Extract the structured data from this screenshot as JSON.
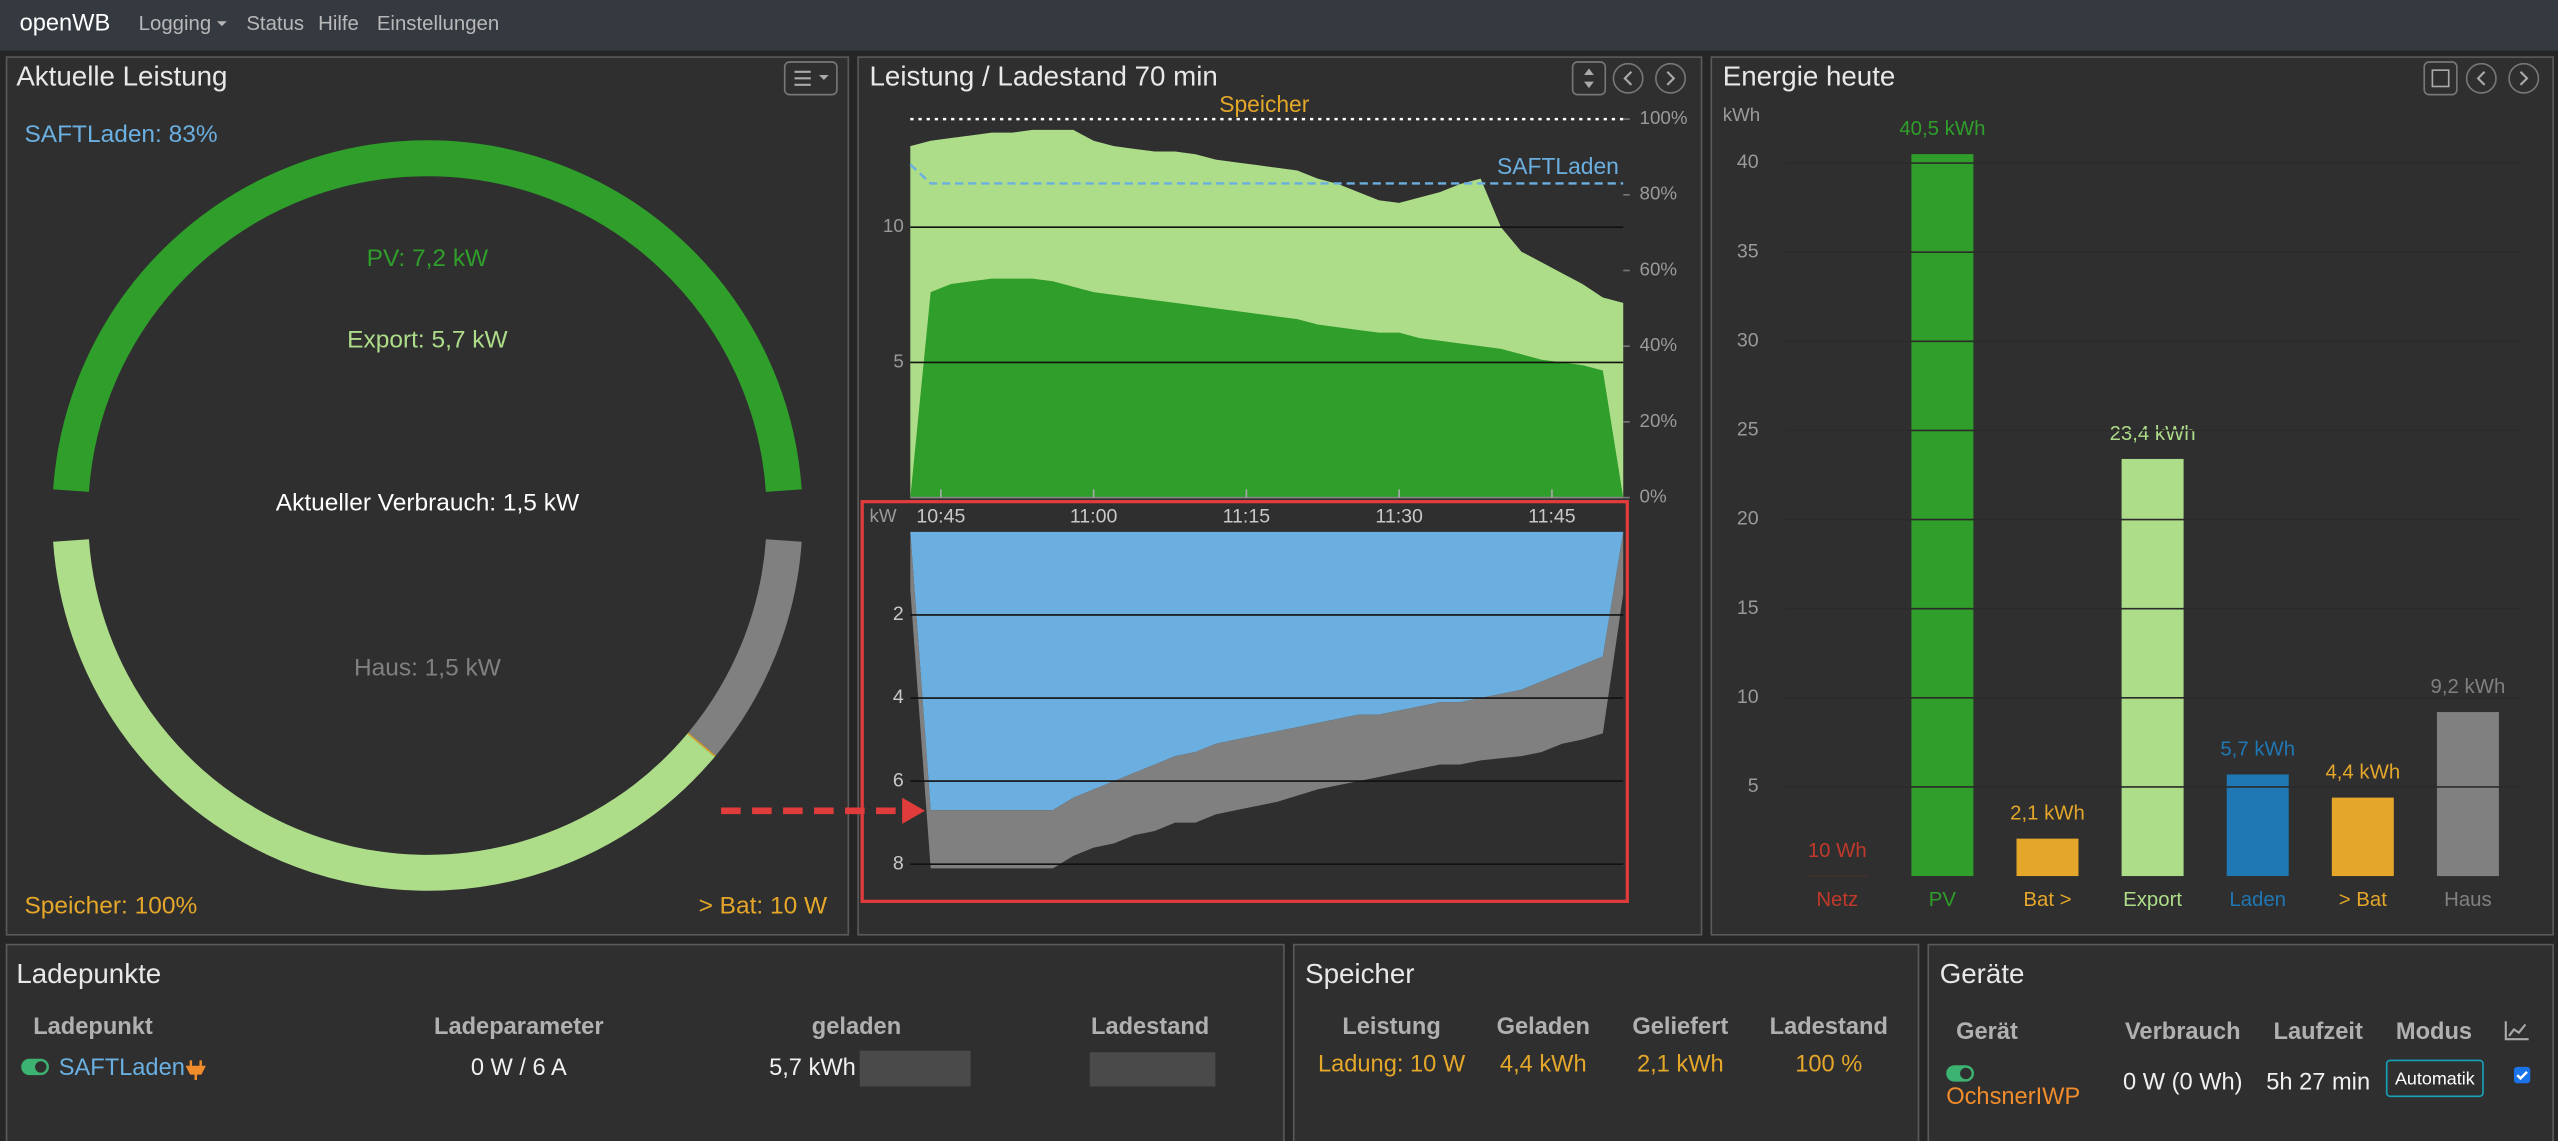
{
  "navbar": {
    "brand": "openWB",
    "menu": [
      "Logging",
      "Status",
      "Hilfe",
      "Einstellungen"
    ]
  },
  "chart_data": [
    {
      "type": "donut",
      "title": "Aktuelle Leistung",
      "annotations": [
        "SAFTLaden: 83%",
        "Aktueller Verbrauch: 1,5 kW",
        "Speicher: 100%"
      ],
      "upper": {
        "values": [
          7.2
        ],
        "value_labels": [
          "PV: 7,2 kW"
        ],
        "colors": [
          "#2f9e2a"
        ]
      },
      "lower": {
        "values": [
          5.7,
          0.01,
          1.5
        ],
        "value_labels": [
          "Export: 5,7 kW",
          "> Bat: 10 W",
          "Haus: 1,5 kW"
        ],
        "colors": [
          "#aedd8a",
          "#e4a72a",
          "#808080"
        ]
      }
    },
    {
      "type": "area",
      "title": "Leistung / Ladestand 70 min",
      "x": [
        "10:42",
        "10:44",
        "10:46",
        "10:48",
        "10:50",
        "10:52",
        "10:54",
        "10:56",
        "10:58",
        "11:00",
        "11:02",
        "11:04",
        "11:06",
        "11:08",
        "11:10",
        "11:12",
        "11:14",
        "11:16",
        "11:18",
        "11:20",
        "11:22",
        "11:24",
        "11:26",
        "11:28",
        "11:30",
        "11:32",
        "11:34",
        "11:36",
        "11:38",
        "11:40",
        "11:42",
        "11:44",
        "11:46",
        "11:48",
        "11:50",
        "11:52"
      ],
      "xlim": [
        "10:42",
        "11:52"
      ],
      "xticks": [
        "10:45",
        "11:00",
        "11:15",
        "11:30",
        "11:45"
      ],
      "ylim": [
        0,
        14
      ],
      "yticks": [
        5,
        10
      ],
      "y2lim": [
        0,
        100
      ],
      "y2ticks": [
        {
          "value": 0,
          "label": "0%"
        },
        {
          "value": 20,
          "label": "20%"
        },
        {
          "value": 40,
          "label": "40%"
        },
        {
          "value": 60,
          "label": "60%"
        },
        {
          "value": 80,
          "label": "80%"
        },
        {
          "value": 100,
          "label": "100%"
        }
      ],
      "grid": true,
      "series": [
        {
          "color": "#aedd8a",
          "values": [
            13.0,
            13.2,
            13.3,
            13.4,
            13.5,
            13.5,
            13.6,
            13.6,
            13.6,
            13.2,
            13.0,
            12.9,
            12.8,
            12.8,
            12.7,
            12.5,
            12.4,
            12.3,
            12.2,
            12.1,
            11.8,
            11.6,
            11.3,
            11.0,
            10.9,
            11.1,
            11.3,
            11.6,
            11.8,
            10.0,
            9.1,
            8.7,
            8.3,
            7.9,
            7.4,
            7.2
          ]
        },
        {
          "color": "#2f9e2a",
          "values": [
            0,
            7.6,
            7.9,
            8.0,
            8.1,
            8.1,
            8.1,
            8.0,
            7.8,
            7.6,
            7.5,
            7.4,
            7.3,
            7.2,
            7.1,
            7.0,
            6.9,
            6.8,
            6.7,
            6.6,
            6.4,
            6.3,
            6.2,
            6.1,
            6.1,
            5.9,
            5.8,
            5.7,
            5.6,
            5.5,
            5.3,
            5.1,
            5.0,
            4.9,
            4.7,
            0
          ]
        },
        {
          "name": "Speicher",
          "axis": "y2",
          "color": "#ffffff",
          "label_color": "#e4a72a",
          "line_style": "dotted",
          "values": [
            100,
            100,
            100,
            100,
            100,
            100,
            100,
            100,
            100,
            100,
            100,
            100,
            100,
            100,
            100,
            100,
            100,
            100,
            100,
            100,
            100,
            100,
            100,
            100,
            100,
            100,
            100,
            100,
            100,
            100,
            100,
            100,
            100,
            100,
            100,
            100
          ]
        },
        {
          "name": "SAFTLaden",
          "axis": "y2",
          "color": "#6aafe0",
          "label_color": "#6aafe0",
          "line_style": "dashed",
          "values": [
            88,
            83,
            83,
            83,
            83,
            83,
            83,
            83,
            83,
            83,
            83,
            83,
            83,
            83,
            83,
            83,
            83,
            83,
            83,
            83,
            83,
            83,
            83,
            83,
            83,
            83,
            83,
            83,
            83,
            83,
            83,
            83,
            83,
            83,
            83,
            83
          ]
        }
      ]
    },
    {
      "type": "stacked_area",
      "ylabel": "kW",
      "y_inverted": true,
      "x": [
        "10:42",
        "10:44",
        "10:46",
        "10:48",
        "10:50",
        "10:52",
        "10:54",
        "10:56",
        "10:58",
        "11:00",
        "11:02",
        "11:04",
        "11:06",
        "11:08",
        "11:10",
        "11:12",
        "11:14",
        "11:16",
        "11:18",
        "11:20",
        "11:22",
        "11:24",
        "11:26",
        "11:28",
        "11:30",
        "11:32",
        "11:34",
        "11:36",
        "11:38",
        "11:40",
        "11:42",
        "11:44",
        "11:46",
        "11:48",
        "11:50",
        "11:52"
      ],
      "xlim": [
        "10:42",
        "11:52"
      ],
      "ylim": [
        0,
        8.6
      ],
      "yticks": [
        2,
        4,
        6,
        8
      ],
      "grid": true,
      "series": [
        {
          "color": "#6aafe0",
          "values": [
            0,
            6.7,
            6.7,
            6.7,
            6.7,
            6.7,
            6.7,
            6.7,
            6.4,
            6.2,
            6.0,
            5.8,
            5.6,
            5.4,
            5.3,
            5.1,
            5.0,
            4.9,
            4.8,
            4.7,
            4.6,
            4.5,
            4.4,
            4.4,
            4.3,
            4.2,
            4.1,
            4.1,
            4.0,
            3.9,
            3.8,
            3.6,
            3.4,
            3.2,
            3.0,
            0
          ]
        },
        {
          "color": "#808080",
          "values": [
            1.4,
            1.4,
            1.4,
            1.4,
            1.4,
            1.4,
            1.4,
            1.4,
            1.4,
            1.4,
            1.5,
            1.5,
            1.6,
            1.6,
            1.7,
            1.7,
            1.7,
            1.7,
            1.7,
            1.65,
            1.6,
            1.6,
            1.6,
            1.5,
            1.5,
            1.5,
            1.5,
            1.5,
            1.5,
            1.55,
            1.6,
            1.7,
            1.7,
            1.8,
            1.85,
            1.5
          ]
        }
      ]
    },
    {
      "type": "bar",
      "title": "Energie heute",
      "ylabel": "kWh",
      "categories": [
        "Netz",
        "PV",
        "Bat >",
        "Export",
        "Laden",
        "> Bat",
        "Haus"
      ],
      "values": [
        0.01,
        40.5,
        2.1,
        23.4,
        5.7,
        4.4,
        9.2
      ],
      "value_labels": [
        "10 Wh",
        "40,5 kWh",
        "2,1 kWh",
        "23,4 kWh",
        "5,7 kWh",
        "4,4 kWh",
        "9,2 kWh"
      ],
      "colors": [
        "#c0392b",
        "#2f9e2a",
        "#e4a72a",
        "#aedd8a",
        "#1f77b4",
        "#e4a72a",
        "#808080"
      ],
      "ylim": [
        0,
        41
      ],
      "yticks": [
        5,
        10,
        15,
        20,
        25,
        30,
        35,
        40
      ],
      "grid": true
    }
  ],
  "charge_points": {
    "title": "Ladepunkte",
    "columns": [
      "Ladepunkt",
      "Ladeparameter",
      "geladen",
      "Ladestand"
    ],
    "rows": [
      [
        "SAFTLaden",
        "0 W / 6 A",
        "5,7 kWh"
      ]
    ]
  },
  "storage": {
    "title": "Speicher",
    "columns": [
      "Leistung",
      "Geladen",
      "Geliefert",
      "Ladestand"
    ],
    "rows": [
      [
        "Ladung: 10 W",
        "4,4 kWh",
        "2,1 kWh",
        "100 %"
      ]
    ]
  },
  "devices": {
    "title": "Geräte",
    "columns": [
      "Gerät",
      "Verbrauch",
      "Laufzeit",
      "Modus"
    ],
    "rows": [
      [
        "OchsnerIWP",
        "0 W (0 Wh)",
        "5h 27 min",
        "Automatik"
      ]
    ]
  }
}
